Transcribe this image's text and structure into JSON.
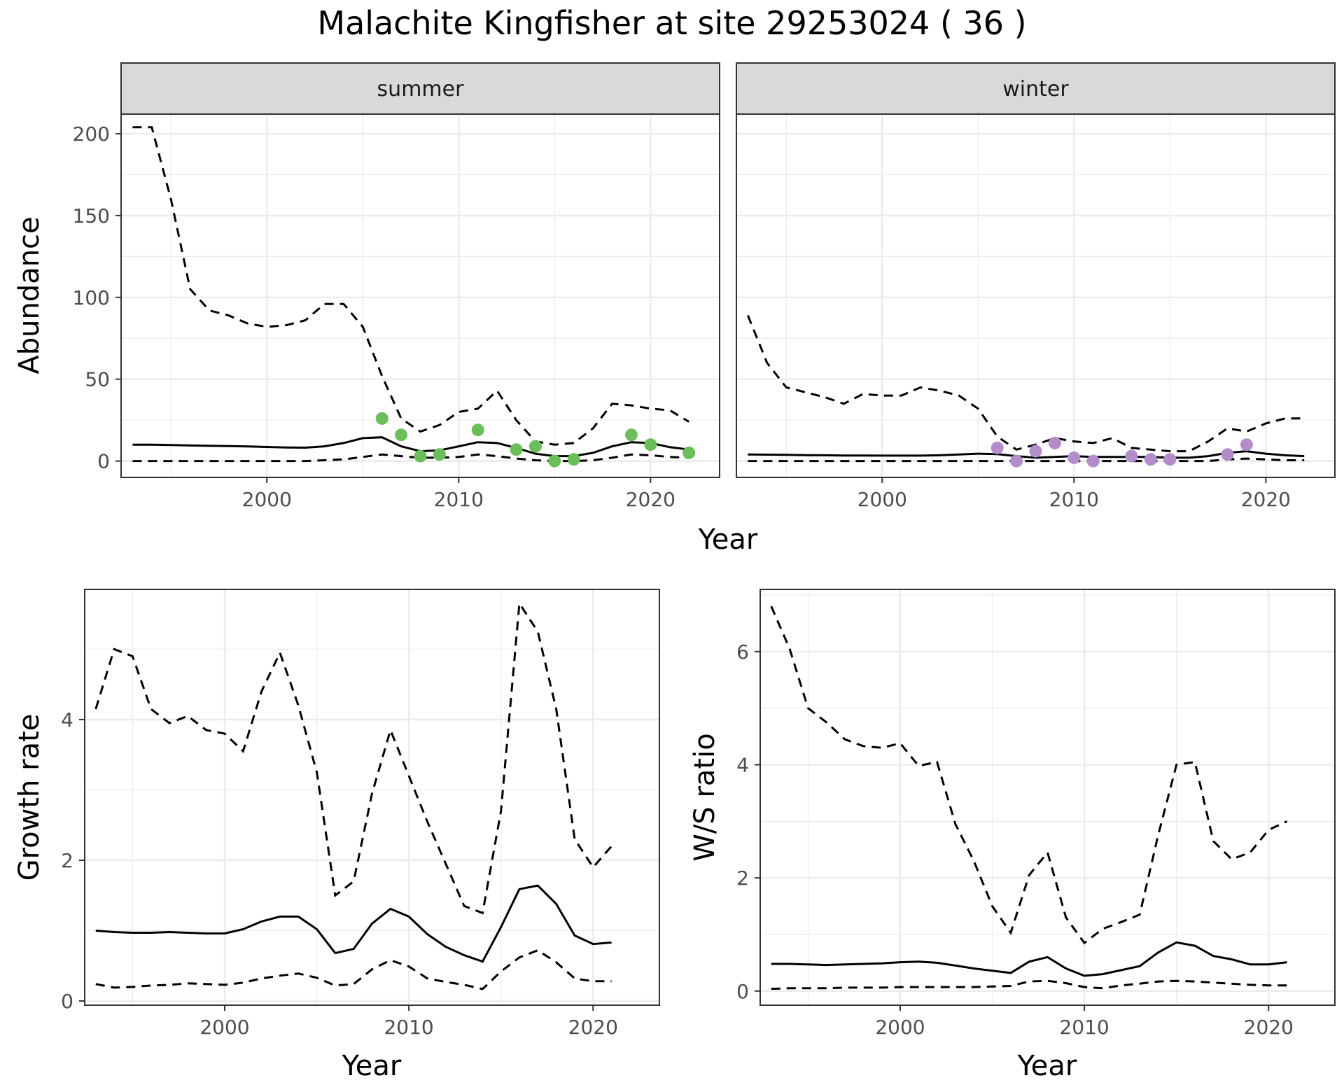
{
  "title": "Malachite Kingfisher at site 29253024 ( 36 )",
  "colors": {
    "summer_points": "#6bbf59",
    "winter_points": "#b48ccc",
    "line": "#000000",
    "strip": "#d9d9d9",
    "grid": "#ebebeb"
  },
  "chart_data": [
    {
      "type": "line",
      "panel": "abundance",
      "facets": [
        "summer",
        "winter"
      ],
      "xlabel": "Year",
      "ylabel": "Abundance",
      "xlim": [
        1992.4,
        2023.6
      ],
      "ylim": [
        -10,
        212
      ],
      "xticks": [
        2000,
        2010,
        2020
      ],
      "yticks": [
        0,
        50,
        100,
        150,
        200
      ],
      "x": [
        1993,
        1994,
        1995,
        1996,
        1997,
        1998,
        1999,
        2000,
        2001,
        2002,
        2003,
        2004,
        2005,
        2006,
        2007,
        2008,
        2009,
        2010,
        2011,
        2012,
        2013,
        2014,
        2015,
        2016,
        2017,
        2018,
        2019,
        2020,
        2021,
        2022
      ],
      "summer": {
        "mean": [
          10,
          10,
          9.8,
          9.5,
          9.3,
          9.1,
          8.9,
          8.6,
          8.3,
          8.2,
          9,
          11,
          14,
          14.5,
          9,
          6,
          6.5,
          9,
          11.5,
          11,
          8,
          4.5,
          3,
          3,
          5,
          9,
          11.5,
          11,
          8.5,
          7
        ],
        "upper": [
          204,
          204,
          160,
          105,
          92,
          89,
          84,
          82,
          83,
          86,
          96,
          96,
          82,
          52,
          26,
          18,
          22,
          30,
          32,
          43,
          25,
          12,
          10,
          11,
          20,
          35,
          34,
          32,
          31,
          24
        ],
        "lower": [
          0,
          0,
          0,
          0,
          0,
          0,
          0,
          0,
          0,
          0,
          0.5,
          1,
          2.5,
          4,
          3,
          2,
          2,
          2.5,
          4,
          3,
          1.5,
          0.5,
          0,
          0,
          0.5,
          2,
          4,
          3.5,
          2.5,
          2
        ],
        "points": {
          "x": [
            2006,
            2007,
            2008,
            2009,
            2011,
            2013,
            2014,
            2015,
            2016,
            2019,
            2020,
            2022
          ],
          "y": [
            26,
            16,
            3,
            4,
            19,
            7,
            9,
            0,
            1,
            16,
            10,
            5
          ]
        }
      },
      "winter": {
        "mean": [
          4,
          3.9,
          3.8,
          3.6,
          3.5,
          3.4,
          3.4,
          3.3,
          3.3,
          3.3,
          3.5,
          4,
          4.5,
          4.2,
          3,
          2,
          2.5,
          3,
          2.5,
          2.5,
          2.5,
          2.5,
          2,
          2,
          3,
          5,
          6,
          4.5,
          3.5,
          3
        ],
        "upper": [
          89,
          60,
          45,
          42,
          39,
          35,
          41,
          40,
          40,
          45,
          43,
          40,
          32,
          15,
          7,
          10,
          14,
          12,
          11,
          14,
          8,
          7,
          6,
          6,
          12,
          20,
          18,
          23,
          26,
          26
        ],
        "lower": [
          0,
          0,
          0,
          0,
          0,
          0,
          0,
          0,
          0,
          0,
          0,
          0,
          0,
          0,
          0,
          0,
          0,
          0,
          0,
          0,
          0,
          0,
          0,
          0,
          0,
          1,
          1.5,
          1,
          0.5,
          0.5
        ],
        "points": {
          "x": [
            2006,
            2007,
            2008,
            2009,
            2010,
            2011,
            2013,
            2014,
            2015,
            2018,
            2019
          ],
          "y": [
            8,
            0,
            6,
            11,
            2,
            0,
            3,
            1,
            1,
            4,
            10
          ]
        }
      }
    },
    {
      "type": "line",
      "panel": "growth",
      "xlabel": "Year",
      "ylabel": "Growth rate",
      "xlim": [
        1992.4,
        2023.6
      ],
      "ylim": [
        -0.06,
        5.85
      ],
      "xticks": [
        2000,
        2010,
        2020
      ],
      "yticks": [
        0,
        2,
        4
      ],
      "x": [
        1993,
        1994,
        1995,
        1996,
        1997,
        1998,
        1999,
        2000,
        2001,
        2002,
        2003,
        2004,
        2005,
        2006,
        2007,
        2008,
        2009,
        2010,
        2011,
        2012,
        2013,
        2014,
        2015,
        2016,
        2017,
        2018,
        2019,
        2020,
        2021
      ],
      "mean": [
        1.0,
        0.98,
        0.97,
        0.97,
        0.98,
        0.97,
        0.96,
        0.96,
        1.02,
        1.13,
        1.2,
        1.2,
        1.02,
        0.68,
        0.74,
        1.1,
        1.31,
        1.2,
        0.95,
        0.77,
        0.65,
        0.56,
        1.05,
        1.59,
        1.64,
        1.38,
        0.93,
        0.81,
        0.83
      ],
      "upper": [
        4.15,
        5.0,
        4.9,
        4.15,
        3.95,
        4.05,
        3.85,
        3.8,
        3.55,
        4.4,
        4.95,
        4.2,
        3.25,
        1.5,
        1.7,
        2.95,
        3.85,
        3.2,
        2.55,
        1.95,
        1.35,
        1.25,
        2.7,
        5.65,
        5.25,
        4.15,
        2.3,
        1.9,
        2.2
      ],
      "lower": [
        0.24,
        0.19,
        0.2,
        0.22,
        0.23,
        0.25,
        0.24,
        0.23,
        0.26,
        0.32,
        0.36,
        0.39,
        0.33,
        0.22,
        0.24,
        0.45,
        0.58,
        0.49,
        0.32,
        0.27,
        0.23,
        0.17,
        0.42,
        0.62,
        0.72,
        0.55,
        0.32,
        0.28,
        0.28
      ]
    },
    {
      "type": "line",
      "panel": "ws_ratio",
      "xlabel": "Year",
      "ylabel": "W/S ratio",
      "xlim": [
        1992.4,
        2023.6
      ],
      "ylim": [
        -0.25,
        7.1
      ],
      "xticks": [
        2000,
        2010,
        2020
      ],
      "yticks": [
        0,
        2,
        4,
        6
      ],
      "x": [
        1993,
        1994,
        1995,
        1996,
        1997,
        1998,
        1999,
        2000,
        2001,
        2002,
        2003,
        2004,
        2005,
        2006,
        2007,
        2008,
        2009,
        2010,
        2011,
        2012,
        2013,
        2014,
        2015,
        2016,
        2017,
        2018,
        2019,
        2020,
        2021
      ],
      "mean": [
        0.48,
        0.48,
        0.47,
        0.46,
        0.47,
        0.48,
        0.49,
        0.51,
        0.52,
        0.5,
        0.45,
        0.4,
        0.36,
        0.32,
        0.52,
        0.6,
        0.4,
        0.27,
        0.3,
        0.37,
        0.44,
        0.68,
        0.86,
        0.8,
        0.62,
        0.56,
        0.47,
        0.47,
        0.51
      ],
      "upper": [
        6.8,
        6.05,
        5.0,
        4.75,
        4.45,
        4.33,
        4.3,
        4.38,
        3.98,
        4.05,
        2.95,
        2.3,
        1.5,
        1.03,
        2.05,
        2.45,
        1.3,
        0.85,
        1.1,
        1.22,
        1.35,
        2.75,
        4.0,
        4.05,
        2.65,
        2.33,
        2.45,
        2.85,
        3.0
      ],
      "lower": [
        0.04,
        0.05,
        0.05,
        0.05,
        0.06,
        0.06,
        0.06,
        0.07,
        0.07,
        0.07,
        0.07,
        0.07,
        0.08,
        0.09,
        0.17,
        0.18,
        0.14,
        0.07,
        0.05,
        0.1,
        0.13,
        0.17,
        0.18,
        0.17,
        0.15,
        0.13,
        0.11,
        0.1,
        0.1
      ]
    }
  ]
}
